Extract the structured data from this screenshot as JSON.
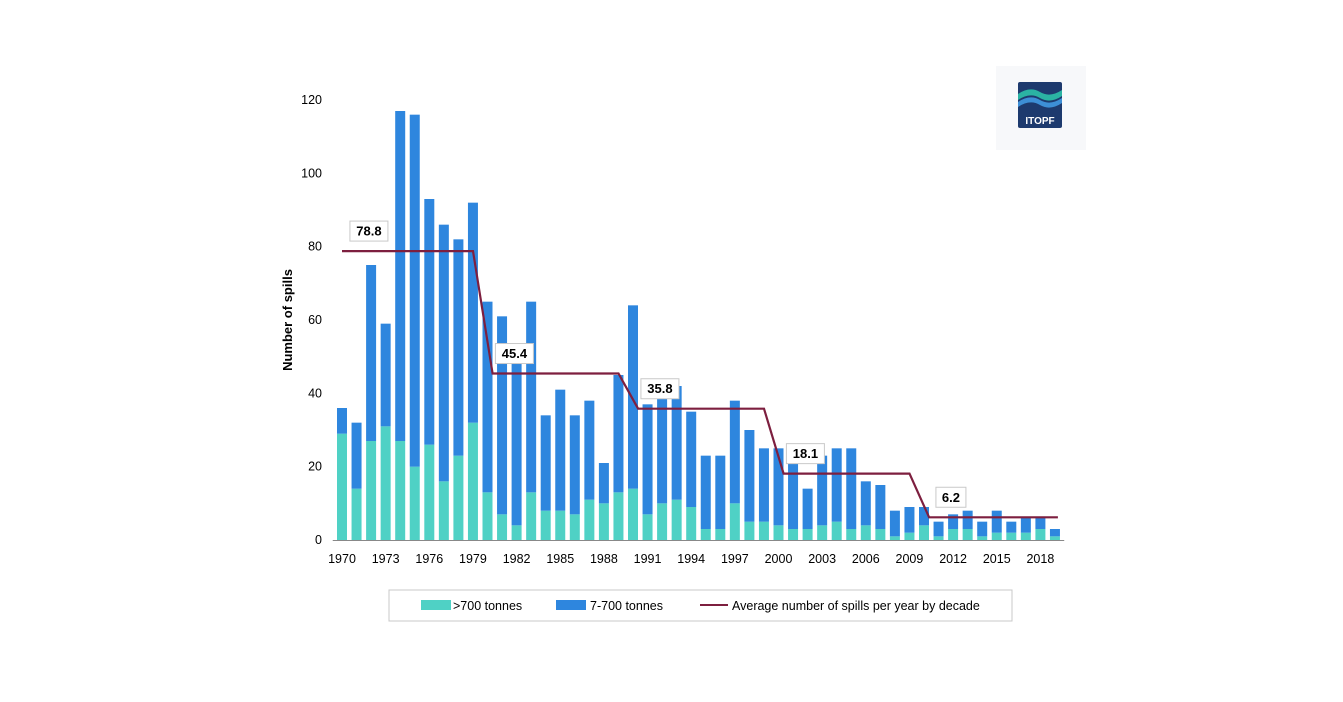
{
  "chart_data": {
    "type": "bar",
    "stacked": true,
    "ylabel": "Number of spills",
    "xlabel": "",
    "ylim": [
      0,
      120
    ],
    "yticks": [
      0,
      20,
      40,
      60,
      80,
      100,
      120
    ],
    "years": [
      1970,
      1971,
      1972,
      1973,
      1974,
      1975,
      1976,
      1977,
      1978,
      1979,
      1980,
      1981,
      1982,
      1983,
      1984,
      1985,
      1986,
      1987,
      1988,
      1989,
      1990,
      1991,
      1992,
      1993,
      1994,
      1995,
      1996,
      1997,
      1998,
      1999,
      2000,
      2001,
      2002,
      2003,
      2004,
      2005,
      2006,
      2007,
      2008,
      2009,
      2010,
      2011,
      2012,
      2013,
      2014,
      2015,
      2016,
      2017,
      2018,
      2019
    ],
    "x_tick_labels": [
      "1970",
      "1973",
      "1976",
      "1979",
      "1982",
      "1985",
      "1988",
      "1991",
      "1994",
      "1997",
      "2000",
      "2003",
      "2006",
      "2009",
      "2012",
      "2015",
      "2018"
    ],
    "series": [
      {
        "name": ">700 tonnes",
        "color": "#4fd1c5",
        "values": [
          29,
          14,
          27,
          31,
          27,
          20,
          26,
          16,
          23,
          32,
          13,
          7,
          4,
          13,
          8,
          8,
          7,
          11,
          10,
          13,
          14,
          7,
          10,
          11,
          9,
          3,
          3,
          10,
          5,
          5,
          4,
          3,
          3,
          4,
          5,
          3,
          4,
          3,
          1,
          2,
          4,
          1,
          3,
          3,
          1,
          2,
          2,
          2,
          3,
          1
        ]
      },
      {
        "name": "7-700 tonnes",
        "color": "#2e86de",
        "values": [
          7,
          18,
          48,
          28,
          90,
          96,
          67,
          70,
          59,
          60,
          52,
          54,
          46,
          52,
          26,
          33,
          27,
          27,
          11,
          32,
          50,
          30,
          31,
          31,
          26,
          20,
          20,
          28,
          25,
          20,
          21,
          18,
          11,
          19,
          20,
          22,
          12,
          12,
          7,
          7,
          5,
          4,
          4,
          5,
          4,
          6,
          3,
          4,
          3,
          2
        ]
      },
      {
        "name": "Average number of spills per year by decade",
        "color": "#7d1f3f",
        "decades": [
          {
            "start": 1970,
            "end": 1979,
            "value": 78.8,
            "label": "78.8"
          },
          {
            "start": 1980,
            "end": 1989,
            "value": 45.4,
            "label": "45.4"
          },
          {
            "start": 1990,
            "end": 1999,
            "value": 35.8,
            "label": "35.8"
          },
          {
            "start": 2000,
            "end": 2009,
            "value": 18.1,
            "label": "18.1"
          },
          {
            "start": 2010,
            "end": 2019,
            "value": 6.2,
            "label": "6.2"
          }
        ]
      }
    ],
    "legend": {
      "placement": "bottom",
      "items": [
        ">700 tonnes",
        "7-700 tonnes",
        "Average number of spills per year by decade"
      ]
    },
    "grid": false
  },
  "logo": {
    "text": "ITOPF",
    "colors": {
      "navy": "#1d3a6e",
      "teal": "#2bb3a3",
      "blue": "#3d8fd6"
    }
  }
}
